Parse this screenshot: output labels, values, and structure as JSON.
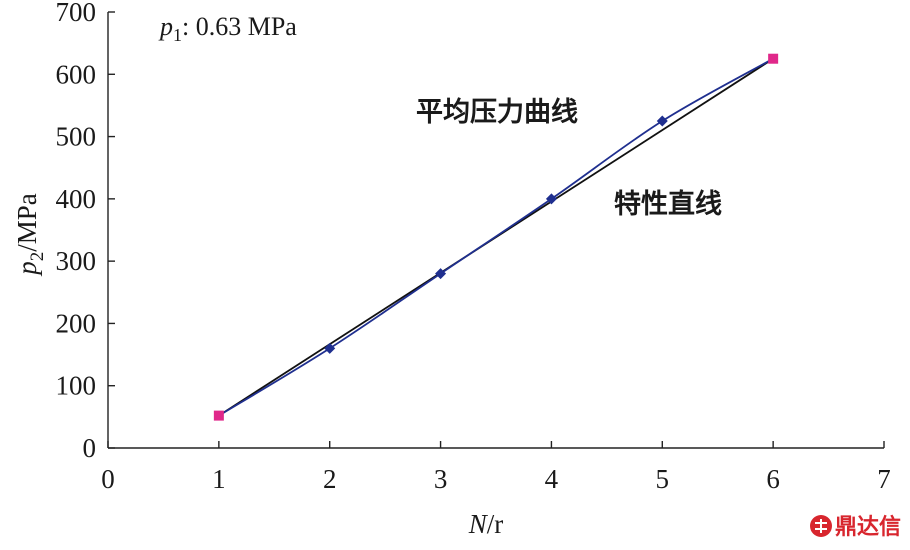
{
  "chart_data": {
    "type": "line",
    "xlabel_var": "N",
    "xlabel_unit": "/r",
    "ylabel_var": "p",
    "ylabel_sub": "2",
    "ylabel_unit": "/MPa",
    "xlim": [
      0,
      7
    ],
    "ylim": [
      0,
      700
    ],
    "xticks": [
      "0",
      "1",
      "2",
      "3",
      "4",
      "5",
      "6",
      "7"
    ],
    "yticks": [
      "0",
      "100",
      "200",
      "300",
      "400",
      "500",
      "600",
      "700"
    ],
    "grid": false,
    "annotation_param": {
      "var": "p",
      "sub": "1",
      "text": ": 0.63 MPa"
    },
    "series": [
      {
        "name": "平均压力曲线",
        "color": "#1f2f8f",
        "marker": "diamond",
        "x": [
          1,
          2,
          3,
          4,
          5,
          6
        ],
        "y": [
          52,
          160,
          280,
          400,
          525,
          625
        ]
      },
      {
        "name": "特性直线",
        "color": "#111111",
        "marker": "none",
        "x": [
          1,
          6
        ],
        "y": [
          52,
          625
        ]
      }
    ],
    "endpoint_color": "#e0288a",
    "watermark": "鼎达信"
  }
}
